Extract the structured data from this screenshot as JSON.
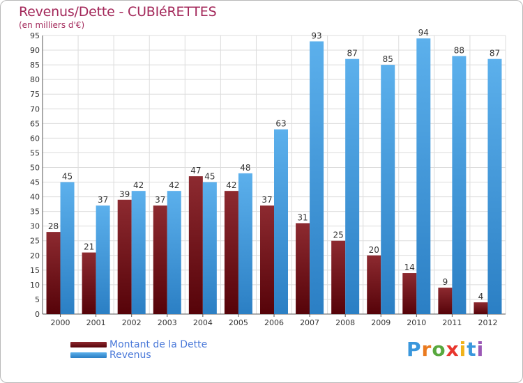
{
  "chart_data": {
    "type": "bar",
    "title": "Revenus/Dette - CUBIéRETTES",
    "subtitle": "(en milliers d'€)",
    "categories": [
      "2000",
      "2001",
      "2002",
      "2003",
      "2004",
      "2005",
      "2006",
      "2007",
      "2008",
      "2009",
      "2010",
      "2011",
      "2012"
    ],
    "series": [
      {
        "name": "Montant de la Dette",
        "color": "#7a0f16",
        "values": [
          28,
          21,
          39,
          37,
          47,
          42,
          37,
          31,
          25,
          20,
          14,
          9,
          4
        ]
      },
      {
        "name": "Revenus",
        "color": "#3a97dc",
        "values": [
          45,
          37,
          42,
          42,
          45,
          48,
          63,
          93,
          87,
          85,
          94,
          88,
          87
        ]
      }
    ],
    "ylim": [
      0,
      95
    ],
    "yticks": [
      0,
      5,
      10,
      15,
      20,
      25,
      30,
      35,
      40,
      45,
      50,
      55,
      60,
      65,
      70,
      75,
      80,
      85,
      90,
      95
    ],
    "grid": true,
    "legend_position": "bottom-left"
  },
  "logo": {
    "letters": [
      "P",
      "r",
      "o",
      "x",
      "i",
      "t",
      "i"
    ],
    "colors": [
      "#3a97dc",
      "#ea7a1f",
      "#58a83e",
      "#e8362d",
      "#f0b21a",
      "#3a97dc",
      "#9b58b5"
    ]
  }
}
